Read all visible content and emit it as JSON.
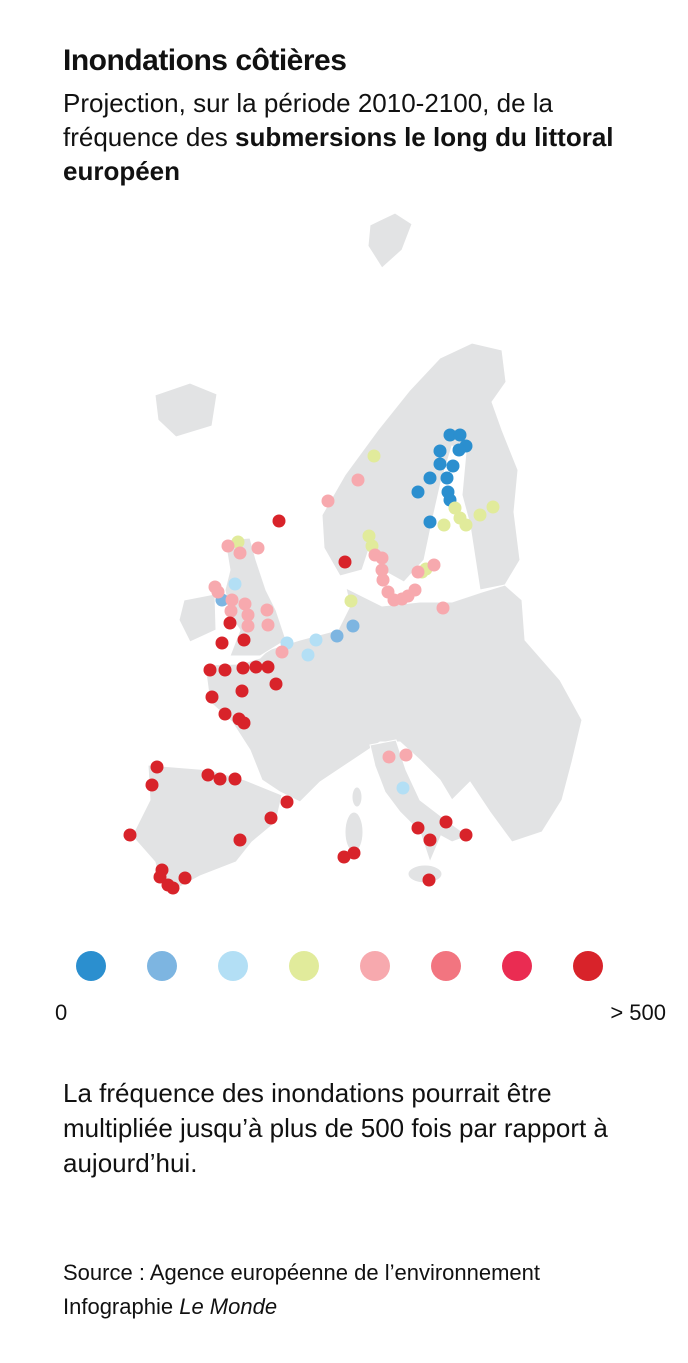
{
  "header": {
    "title": "Inondations côtières",
    "subtitle_plain": "Projection, sur la période 2010-2100, de la fréquence des",
    "subtitle_bold": "submersions le long du littoral européen"
  },
  "legend": {
    "colors": [
      "#2b8fcf",
      "#7db5e1",
      "#b3dff5",
      "#e1eb9b",
      "#f7a9ae",
      "#f27580",
      "#ea2c52",
      "#d8232a"
    ],
    "min_label": "0",
    "max_label": "> 500"
  },
  "note": "La fréquence des inondations pourrait être multipliée jusqu’à plus de 500 fois par rapport à aujourd’hui.",
  "footer": {
    "source": "Source : Agence européenne de l’environnement",
    "credit_prefix": "Infographie",
    "credit_name": "Le Monde"
  }
}
